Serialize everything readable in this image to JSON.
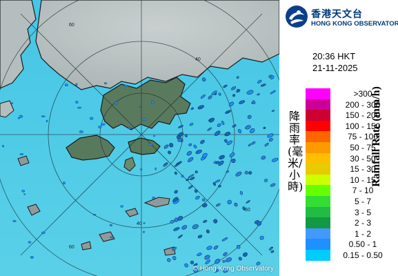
{
  "map": {
    "copyright": "© Hong Kong Observatory",
    "range_ring_labels": [
      "60",
      "40",
      "60",
      "60",
      "40"
    ]
  },
  "header": {
    "org_name_zh": "香港天文台",
    "org_name_en": "HONG KONG OBSERVATORY",
    "logo_icon": "observatory-logo-icon"
  },
  "timestamp": {
    "time": "20:36 HKT",
    "date": "21-11-2025"
  },
  "legend": {
    "title_zh": "降雨率(毫米/小時)",
    "title_en": "Rainfall Rate (mm/h)",
    "items": [
      {
        "label": ">300",
        "color": "#ff00ff"
      },
      {
        "label": "200 - 300",
        "color": "#cc0099"
      },
      {
        "label": "150 - 200",
        "color": "#cc0033"
      },
      {
        "label": "100 - 150",
        "color": "#ff0000"
      },
      {
        "label": "75 - 100",
        "color": "#ff6600"
      },
      {
        "label": "50 - 75",
        "color": "#ff9900"
      },
      {
        "label": "30 - 50",
        "color": "#ffbf00"
      },
      {
        "label": "15 - 30",
        "color": "#e6cc00"
      },
      {
        "label": "10 - 15",
        "color": "#ccff00"
      },
      {
        "label": "7 - 10",
        "color": "#66ff00"
      },
      {
        "label": "5 - 7",
        "color": "#33dd33"
      },
      {
        "label": "3 - 5",
        "color": "#22bb44"
      },
      {
        "label": "2 - 3",
        "color": "#119944"
      },
      {
        "label": "1 - 2",
        "color": "#4499ff"
      },
      {
        "label": "0.50 - 1",
        "color": "#1e90ff"
      },
      {
        "label": "0.15 - 0.50",
        "color": "#00ccff"
      }
    ]
  }
}
